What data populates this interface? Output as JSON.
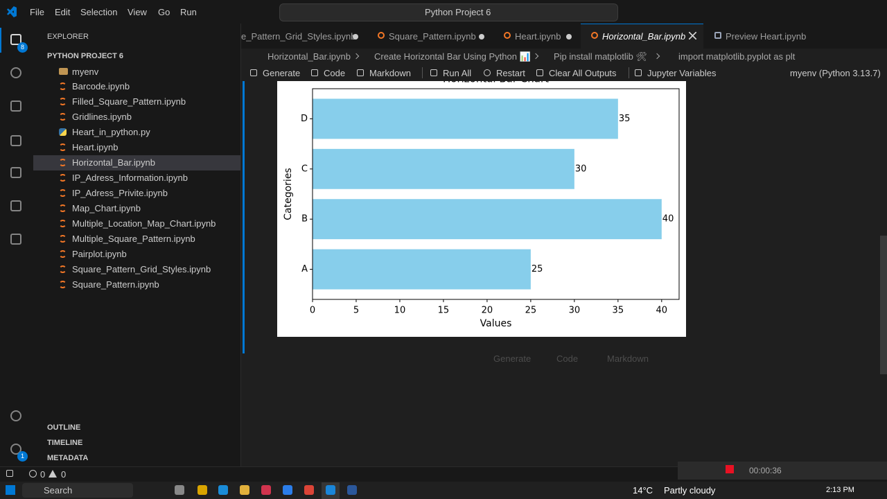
{
  "titlebar": {
    "menu": [
      "File",
      "Edit",
      "Selection",
      "View",
      "Go",
      "Run"
    ],
    "search": "Python Project 6"
  },
  "activity_bar": {
    "explorer_badge": "8",
    "settings_badge": "1"
  },
  "explorer": {
    "title": "EXPLORER",
    "project": "PYTHON PROJECT 6",
    "folder": "myenv",
    "files": [
      "Barcode.ipynb",
      "Filled_Square_Pattern.ipynb",
      "Gridlines.ipynb",
      "Heart_in_python.py",
      "Heart.ipynb",
      "Horizontal_Bar.ipynb",
      "IP_Adress_Information.ipynb",
      "IP_Adress_Privite.ipynb",
      "Map_Chart.ipynb",
      "Multiple_Location_Map_Chart.ipynb",
      "Multiple_Square_Pattern.ipynb",
      "Pairplot.ipynb",
      "Square_Pattern_Grid_Styles.ipynb",
      "Square_Pattern.ipynb"
    ],
    "sections": [
      "OUTLINE",
      "TIMELINE",
      "METADATA"
    ]
  },
  "tabs": [
    "e_Pattern_Grid_Styles.ipynb",
    "Square_Pattern.ipynb",
    "Heart.ipynb",
    "Horizontal_Bar.ipynb",
    "Preview Heart.ipynb"
  ],
  "breadcrumb": [
    "Horizontal_Bar.ipynb",
    "Create Horizontal Bar Using Python 📊",
    "Pip install matplotlib 🛠",
    "import matplotlib.pyplot as plt"
  ],
  "toolbar": {
    "actions": [
      "Generate",
      "Code",
      "Markdown",
      "Run All",
      "Restart",
      "Clear All Outputs",
      "Jupyter Variables"
    ],
    "kernel": "myenv (Python 3.13.7)"
  },
  "chart_data": {
    "type": "bar",
    "orientation": "horizontal",
    "title": "Horizontal Bar Chart",
    "xlabel": "Values",
    "ylabel": "Categories",
    "categories": [
      "A",
      "B",
      "C",
      "D"
    ],
    "values": [
      25,
      40,
      30,
      35
    ],
    "color": "#87ceeb",
    "xlim": [
      0,
      42
    ],
    "xticks": [
      0,
      5,
      10,
      15,
      20,
      25,
      30,
      35,
      40
    ]
  },
  "cell_actions": [
    "Generate",
    "Code",
    "Markdown"
  ],
  "status_bar": {
    "errors": 0,
    "warnings": 0
  },
  "recorder": {
    "timer": "00:00:36"
  },
  "taskbar": {
    "search": "Search",
    "temperature": "14°C",
    "weather": "Partly cloudy",
    "time": "2:13 PM"
  }
}
